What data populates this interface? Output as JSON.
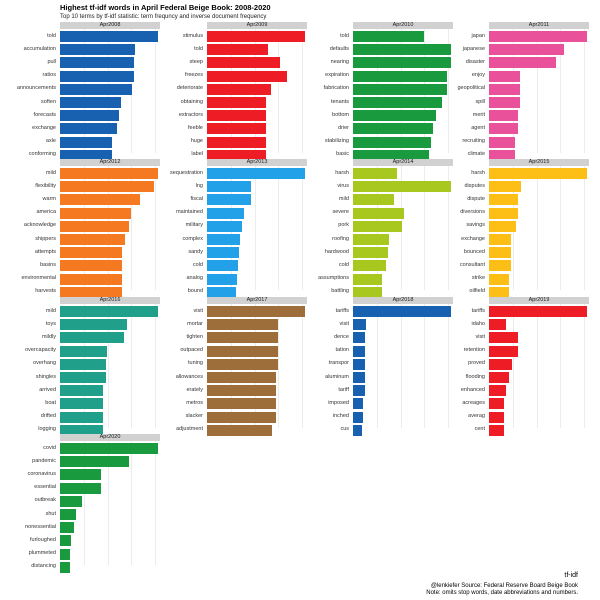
{
  "header": {
    "title": "Highest tf-idf words in April Federal Beige Book: 2008-2020",
    "subtitle": "Top 10 terms by tf-idf statistic: term frequncy and inverse document frequency",
    "xlabel": "tf-idf",
    "caption_line1": "@lenkiefer Source: Federal Reserve Board Beige Book",
    "caption_line2": "Note: omits stop words, date abbreviations and numbers."
  },
  "chart_data": {
    "type": "bar",
    "orientation": "horizontal",
    "facet": "year",
    "grid": true,
    "title": "Highest tf-idf words in April Federal Beige Book: 2008-2020",
    "subtitle": "Top 10 terms by tf-idf statistic: term frequncy and inverse document frequency",
    "xlabel": "tf-idf",
    "panels": [
      {
        "name": "Apr2008",
        "color": "#1861b0",
        "categories": [
          "told",
          "accumulation",
          "pull",
          "ratios",
          "announcements",
          "soften",
          "forecasts",
          "exchange",
          "axle",
          "conforming"
        ],
        "values": [
          1.0,
          0.77,
          0.76,
          0.76,
          0.73,
          0.62,
          0.6,
          0.58,
          0.53,
          0.53
        ]
      },
      {
        "name": "Apr2009",
        "color": "#ee1c25",
        "categories": [
          "stimulus",
          "told",
          "steep",
          "freezes",
          "deteriorate",
          "obtaining",
          "extractors",
          "feeble",
          "huge",
          "label"
        ],
        "values": [
          1.0,
          0.62,
          0.74,
          0.82,
          0.65,
          0.6,
          0.6,
          0.6,
          0.6,
          0.6
        ]
      },
      {
        "name": "Apr2010",
        "color": "#1a9a3f",
        "categories": [
          "told",
          "defaults",
          "nearing",
          "expiration",
          "fabrication",
          "tenants",
          "bottom",
          "drier",
          "stabilizing",
          "basic"
        ],
        "values": [
          0.72,
          1.0,
          1.0,
          0.96,
          0.96,
          0.91,
          0.85,
          0.82,
          0.8,
          0.78
        ]
      },
      {
        "name": "Apr2011",
        "color": "#e9529b",
        "categories": [
          "japan",
          "japanese",
          "disaster",
          "enjoy",
          "geopolitical",
          "spill",
          "merit",
          "agent",
          "recruiting",
          "climate"
        ],
        "values": [
          1.0,
          0.77,
          0.68,
          0.32,
          0.32,
          0.32,
          0.3,
          0.3,
          0.27,
          0.27
        ]
      },
      {
        "name": "Apr2012",
        "color": "#f47920",
        "categories": [
          "mild",
          "flexibility",
          "warm",
          "america",
          "acknowledge",
          "shippers",
          "attempts",
          "basins",
          "environmental",
          "harvests"
        ],
        "values": [
          1.0,
          0.96,
          0.82,
          0.72,
          0.7,
          0.66,
          0.63,
          0.63,
          0.63,
          0.63
        ]
      },
      {
        "name": "Apr2013",
        "color": "#22a0e8",
        "categories": [
          "sequestration",
          "lng",
          "fiscal",
          "maintained",
          "military",
          "complex",
          "sandy",
          "cold",
          "analog",
          "bound"
        ],
        "values": [
          1.0,
          0.45,
          0.45,
          0.38,
          0.36,
          0.34,
          0.33,
          0.32,
          0.31,
          0.3
        ]
      },
      {
        "name": "Apr2014",
        "color": "#a8c820",
        "categories": [
          "harsh",
          "virus",
          "mild",
          "severe",
          "pork",
          "roofing",
          "hardwood",
          "cold",
          "assumptions",
          "battling"
        ],
        "values": [
          0.45,
          1.0,
          0.42,
          0.52,
          0.5,
          0.37,
          0.36,
          0.34,
          0.3,
          0.3
        ]
      },
      {
        "name": "Apr2015",
        "color": "#fdbf16",
        "categories": [
          "harsh",
          "disputes",
          "dispute",
          "diversions",
          "savings",
          "exchange",
          "bounced",
          "consultant",
          "strike",
          "oilfield"
        ],
        "values": [
          1.0,
          0.33,
          0.3,
          0.3,
          0.28,
          0.22,
          0.22,
          0.22,
          0.2,
          0.2
        ]
      },
      {
        "name": "Apr2016",
        "color": "#20a08a",
        "categories": [
          "mild",
          "toys",
          "mildly",
          "overcapacity",
          "overhang",
          "shingles",
          "arrived",
          "boat",
          "drifted",
          "logging"
        ],
        "values": [
          1.0,
          0.68,
          0.65,
          0.48,
          0.47,
          0.47,
          0.44,
          0.44,
          0.44,
          0.44
        ]
      },
      {
        "name": "Apr2017",
        "color": "#9e6e3a",
        "categories": [
          "visit",
          "mortar",
          "tighten",
          "outpaced",
          "tuning",
          "allowances",
          "erately",
          "metros",
          "slacker",
          "adjustment"
        ],
        "values": [
          1.0,
          0.72,
          0.72,
          0.72,
          0.72,
          0.7,
          0.7,
          0.7,
          0.7,
          0.66
        ]
      },
      {
        "name": "Apr2018",
        "color": "#1861b0",
        "categories": [
          "tariffs",
          "visit",
          "dence",
          "tation",
          "transpor",
          "aluminum",
          "tariff",
          "imposed",
          "inched",
          "cus"
        ],
        "values": [
          1.0,
          0.13,
          0.12,
          0.12,
          0.12,
          0.12,
          0.12,
          0.1,
          0.1,
          0.09
        ]
      },
      {
        "name": "Apr2019",
        "color": "#ee1c25",
        "categories": [
          "tariffs",
          "idaho",
          "visit",
          "retention",
          "proved",
          "flooding",
          "enhanced",
          "acreages",
          "averag",
          "cent"
        ],
        "values": [
          1.0,
          0.17,
          0.3,
          0.3,
          0.23,
          0.2,
          0.17,
          0.15,
          0.15,
          0.15
        ]
      },
      {
        "name": "Apr2020",
        "color": "#1a9a3f",
        "categories": [
          "covid",
          "pandemic",
          "coronavirus",
          "essential",
          "outbreak",
          "shut",
          "nonessential",
          "furloughed",
          "plummeted",
          "distancing"
        ],
        "values": [
          1.0,
          0.7,
          0.42,
          0.42,
          0.22,
          0.16,
          0.14,
          0.11,
          0.1,
          0.1
        ]
      }
    ]
  }
}
